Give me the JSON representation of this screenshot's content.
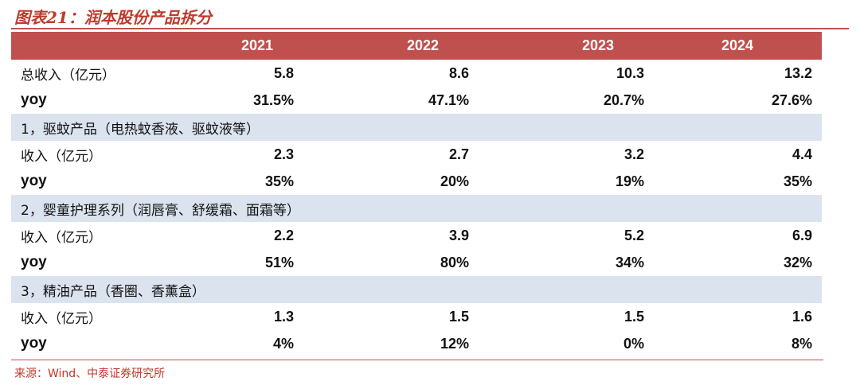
{
  "title": "图表21：润本股份产品拆分",
  "header": {
    "years": [
      "2021",
      "2022",
      "2023",
      "2024"
    ]
  },
  "rows": [
    {
      "type": "data",
      "label": "总收入（亿元）",
      "values": [
        "5.8",
        "8.6",
        "10.3",
        "13.2"
      ]
    },
    {
      "type": "yoy",
      "label": "yoy",
      "values": [
        "31.5%",
        "47.1%",
        "20.7%",
        "27.6%"
      ]
    },
    {
      "type": "section",
      "label": "1，驱蚊产品（电热蚊香液、驱蚊液等）"
    },
    {
      "type": "data",
      "label": "收入（亿元）",
      "values": [
        "2.3",
        "2.7",
        "3.2",
        "4.4"
      ]
    },
    {
      "type": "yoy",
      "label": "yoy",
      "values": [
        "35%",
        "20%",
        "19%",
        "35%"
      ]
    },
    {
      "type": "section",
      "label": "2，婴童护理系列（润唇膏、舒缓霜、面霜等）"
    },
    {
      "type": "data",
      "label": "收入（亿元）",
      "values": [
        "2.2",
        "3.9",
        "5.2",
        "6.9"
      ]
    },
    {
      "type": "yoy",
      "label": "yoy",
      "values": [
        "51%",
        "80%",
        "34%",
        "32%"
      ]
    },
    {
      "type": "section",
      "label": "3，精油产品（香圈、香薰盒）"
    },
    {
      "type": "data",
      "label": "收入（亿元）",
      "values": [
        "1.3",
        "1.5",
        "1.5",
        "1.6"
      ]
    },
    {
      "type": "yoy",
      "label": "yoy",
      "values": [
        "4%",
        "12%",
        "0%",
        "8%"
      ]
    }
  ],
  "source": "来源：Wind、中泰证券研究所",
  "colors": {
    "header_bg": "#c0504d",
    "section_bg": "#dbe3ee",
    "title": "#c0392b"
  }
}
